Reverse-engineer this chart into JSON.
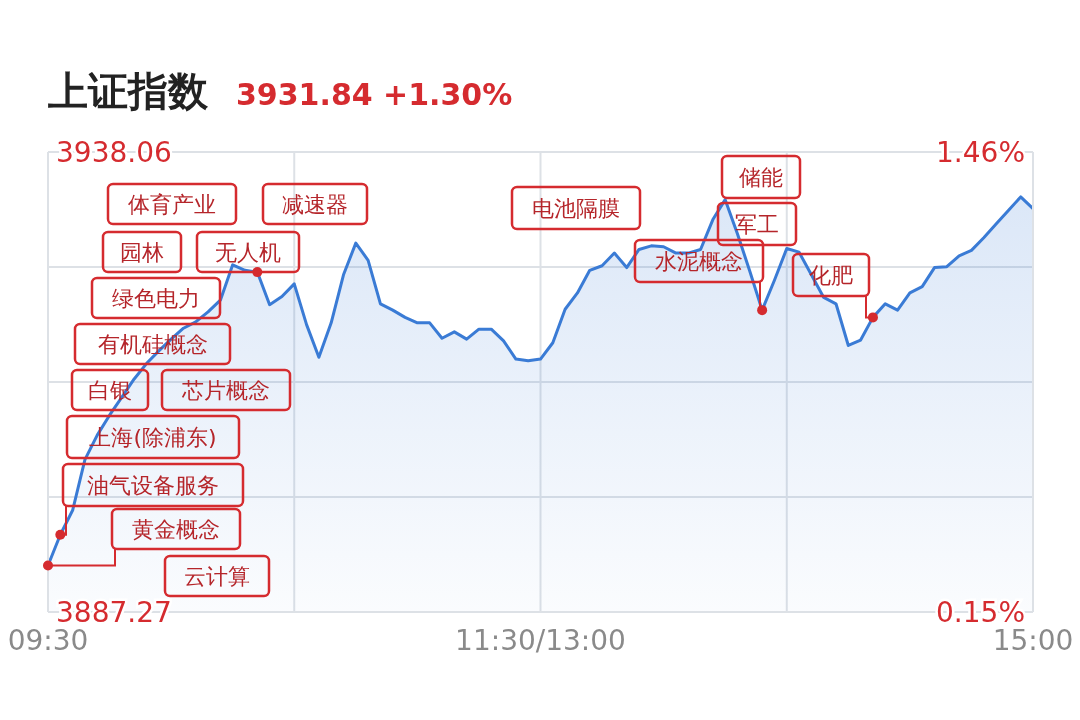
{
  "chart_data": {
    "type": "area",
    "title": "上证指数",
    "subtitle": "3931.84 +1.30%",
    "categories": [
      "09:30",
      null,
      null,
      null,
      null,
      null,
      null,
      null,
      null,
      null,
      null,
      null,
      null,
      null,
      null,
      null,
      null,
      null,
      null,
      null,
      null,
      null,
      null,
      null,
      null,
      null,
      null,
      null,
      null,
      null,
      null,
      null,
      null,
      null,
      null,
      null,
      null,
      null,
      null,
      null,
      "11:30/13:00",
      null,
      null,
      null,
      null,
      null,
      null,
      null,
      null,
      null,
      null,
      null,
      null,
      null,
      null,
      null,
      null,
      null,
      null,
      null,
      null,
      null,
      null,
      null,
      null,
      null,
      null,
      null,
      null,
      null,
      null,
      null,
      null,
      null,
      null,
      null,
      null,
      null,
      null,
      null,
      "15:00"
    ],
    "series": [
      {
        "color": "#3a7bd5",
        "values": [
          3892.4,
          3895.8,
          3898.5,
          3904.1,
          3906.8,
          3909.0,
          3911.0,
          3913.0,
          3914.7,
          3916.1,
          3917.4,
          3918.6,
          3919.3,
          3920.4,
          3921.7,
          3925.6,
          3925.0,
          3924.8,
          3921.2,
          3922.1,
          3923.5,
          3919.0,
          3915.4,
          3919.2,
          3924.5,
          3928.0,
          3926.1,
          3921.3,
          3920.6,
          3919.8,
          3919.2,
          3919.2,
          3917.5,
          3918.2,
          3917.4,
          3918.5,
          3918.5,
          3917.2,
          3915.2,
          3915.0,
          3915.2,
          3917.0,
          3920.7,
          3922.5,
          3925.0,
          3925.5,
          3926.9,
          3925.3,
          3927.3,
          3927.7,
          3927.6,
          3926.9,
          3926.9,
          3927.3,
          3930.6,
          3932.8,
          3929.0,
          3924.9,
          3920.6,
          3923.9,
          3927.4,
          3927.0,
          3924.5,
          3922.0,
          3921.3,
          3916.7,
          3917.3,
          3919.8,
          3921.3,
          3920.6,
          3922.5,
          3923.2,
          3925.3,
          3925.4,
          3926.6,
          3927.2,
          3928.6,
          3930.1,
          3931.6,
          3933.1,
          3931.8
        ]
      }
    ],
    "ylim": [
      3887.27,
      3938.06
    ],
    "yticks": [
      3887.27,
      3938.06
    ],
    "y2lim": [
      0.15,
      1.46
    ],
    "y2ticks": [
      {
        "value": 0.15,
        "label": "0.15%"
      },
      {
        "value": 1.46,
        "label": "1.46%"
      }
    ],
    "grid": true,
    "annotations": [
      "体育产业",
      "减速器",
      "园林",
      "无人机",
      "绿色电力",
      "有机硅概念",
      "白银",
      "芯片概念",
      "上海(除浦东)",
      "油气设备服务",
      {
        "text": "黄金概念",
        "x": "09:30",
        "y": 3892.4
      },
      "云计算",
      "电池隔膜",
      "水泥概念",
      "储能",
      "军工",
      "化肥"
    ]
  }
}
